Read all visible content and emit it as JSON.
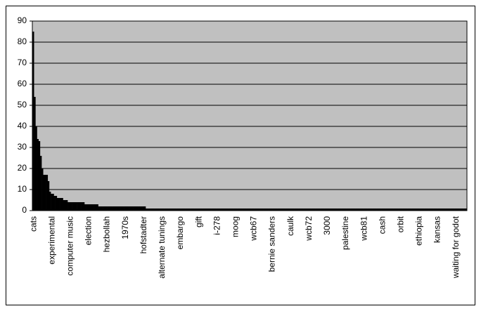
{
  "chart_data": {
    "type": "bar",
    "categories": [
      "cats",
      null,
      null,
      null,
      null,
      null,
      null,
      null,
      null,
      null,
      null,
      null,
      "experimental",
      null,
      null,
      null,
      null,
      null,
      null,
      null,
      null,
      null,
      null,
      null,
      "computer music",
      null,
      null,
      null,
      null,
      null,
      null,
      null,
      null,
      null,
      null,
      null,
      "election",
      null,
      null,
      null,
      null,
      null,
      null,
      null,
      null,
      null,
      null,
      null,
      "hezbollah",
      null,
      null,
      null,
      null,
      null,
      null,
      null,
      null,
      null,
      null,
      null,
      "1970s",
      null,
      null,
      null,
      null,
      null,
      null,
      null,
      null,
      null,
      null,
      null,
      "hofstadter",
      null,
      null,
      null,
      null,
      null,
      null,
      null,
      null,
      null,
      null,
      null,
      "alternate tunings",
      null,
      null,
      null,
      null,
      null,
      null,
      null,
      null,
      null,
      null,
      null,
      "embargo",
      null,
      null,
      null,
      null,
      null,
      null,
      null,
      null,
      null,
      null,
      null,
      "gift",
      null,
      null,
      null,
      null,
      null,
      null,
      null,
      null,
      null,
      null,
      null,
      "i-278",
      null,
      null,
      null,
      null,
      null,
      null,
      null,
      null,
      null,
      null,
      null,
      "moog",
      null,
      null,
      null,
      null,
      null,
      null,
      null,
      null,
      null,
      null,
      null,
      "wcb67",
      null,
      null,
      null,
      null,
      null,
      null,
      null,
      null,
      null,
      null,
      null,
      "bernie sanders",
      null,
      null,
      null,
      null,
      null,
      null,
      null,
      null,
      null,
      null,
      null,
      "caulk",
      null,
      null,
      null,
      null,
      null,
      null,
      null,
      null,
      null,
      null,
      null,
      "wcb72",
      null,
      null,
      null,
      null,
      null,
      null,
      null,
      null,
      null,
      null,
      null,
      "3000",
      null,
      null,
      null,
      null,
      null,
      null,
      null,
      null,
      null,
      null,
      null,
      "palestine",
      null,
      null,
      null,
      null,
      null,
      null,
      null,
      null,
      null,
      null,
      null,
      "wcb81",
      null,
      null,
      null,
      null,
      null,
      null,
      null,
      null,
      null,
      null,
      null,
      "cash",
      null,
      null,
      null,
      null,
      null,
      null,
      null,
      null,
      null,
      null,
      null,
      "orbit",
      null,
      null,
      null,
      null,
      null,
      null,
      null,
      null,
      null,
      null,
      null,
      "ethiopia",
      null,
      null,
      null,
      null,
      null,
      null,
      null,
      null,
      null,
      null,
      null,
      "kansas",
      null,
      null,
      null,
      null,
      null,
      null,
      null,
      null,
      null,
      null,
      null,
      "waiting for godot",
      null,
      null,
      null,
      null,
      null,
      null,
      null
    ],
    "values": [
      85,
      54,
      40,
      34,
      33,
      26,
      20,
      17,
      17,
      17,
      14,
      9,
      8,
      8,
      7,
      7,
      6,
      6,
      6,
      6,
      5,
      5,
      5,
      4,
      4,
      4,
      4,
      4,
      4,
      4,
      4,
      4,
      4,
      4,
      3,
      3,
      3,
      3,
      3,
      3,
      3,
      3,
      3,
      2,
      2,
      2,
      2,
      2,
      2,
      2,
      2,
      2,
      2,
      2,
      2,
      2,
      2,
      2,
      2,
      2,
      2,
      2,
      2,
      2,
      2,
      2,
      2,
      2,
      2,
      2,
      2,
      2,
      2,
      2,
      1,
      1,
      1,
      1,
      1,
      1,
      1,
      1,
      1,
      1,
      1,
      1,
      1,
      1,
      1,
      1,
      1,
      1,
      1,
      1,
      1,
      1,
      1,
      1,
      1,
      1,
      1,
      1,
      1,
      1,
      1,
      1,
      1,
      1,
      1,
      1,
      1,
      1,
      1,
      1,
      1,
      1,
      1,
      1,
      1,
      1,
      1,
      1,
      1,
      1,
      1,
      1,
      1,
      1,
      1,
      1,
      1,
      1,
      1,
      1,
      1,
      1,
      1,
      1,
      1,
      1,
      1,
      1,
      1,
      1,
      1,
      1,
      1,
      1,
      1,
      1,
      1,
      1,
      1,
      1,
      1,
      1,
      1,
      1,
      1,
      1,
      1,
      1,
      1,
      1,
      1,
      1,
      1,
      1,
      1,
      1,
      1,
      1,
      1,
      1,
      1,
      1,
      1,
      1,
      1,
      1,
      1,
      1,
      1,
      1,
      1,
      1,
      1,
      1,
      1,
      1,
      1,
      1,
      1,
      1,
      1,
      1,
      1,
      1,
      1,
      1,
      1,
      1,
      1,
      1,
      1,
      1,
      1,
      1,
      1,
      1,
      1,
      1,
      1,
      1,
      1,
      1,
      1,
      1,
      1,
      1,
      1,
      1,
      1,
      1,
      1,
      1,
      1,
      1,
      1,
      1,
      1,
      1,
      1,
      1,
      1,
      1,
      1,
      1,
      1,
      1,
      1,
      1,
      1,
      1,
      1,
      1,
      1,
      1,
      1,
      1,
      1,
      1,
      1,
      1,
      1,
      1,
      1,
      1,
      1,
      1,
      1,
      1,
      1,
      1,
      1,
      1,
      1,
      1,
      1,
      1,
      1,
      1,
      1,
      1,
      1,
      1,
      1,
      1,
      1,
      1,
      1,
      1,
      1,
      1
    ],
    "color": "#000000",
    "plot_background": "#c0c0c0",
    "ylim": [
      0,
      90
    ],
    "yticks": [
      0,
      10,
      20,
      30,
      40,
      50,
      60,
      70,
      80,
      90
    ],
    "grid": true
  }
}
